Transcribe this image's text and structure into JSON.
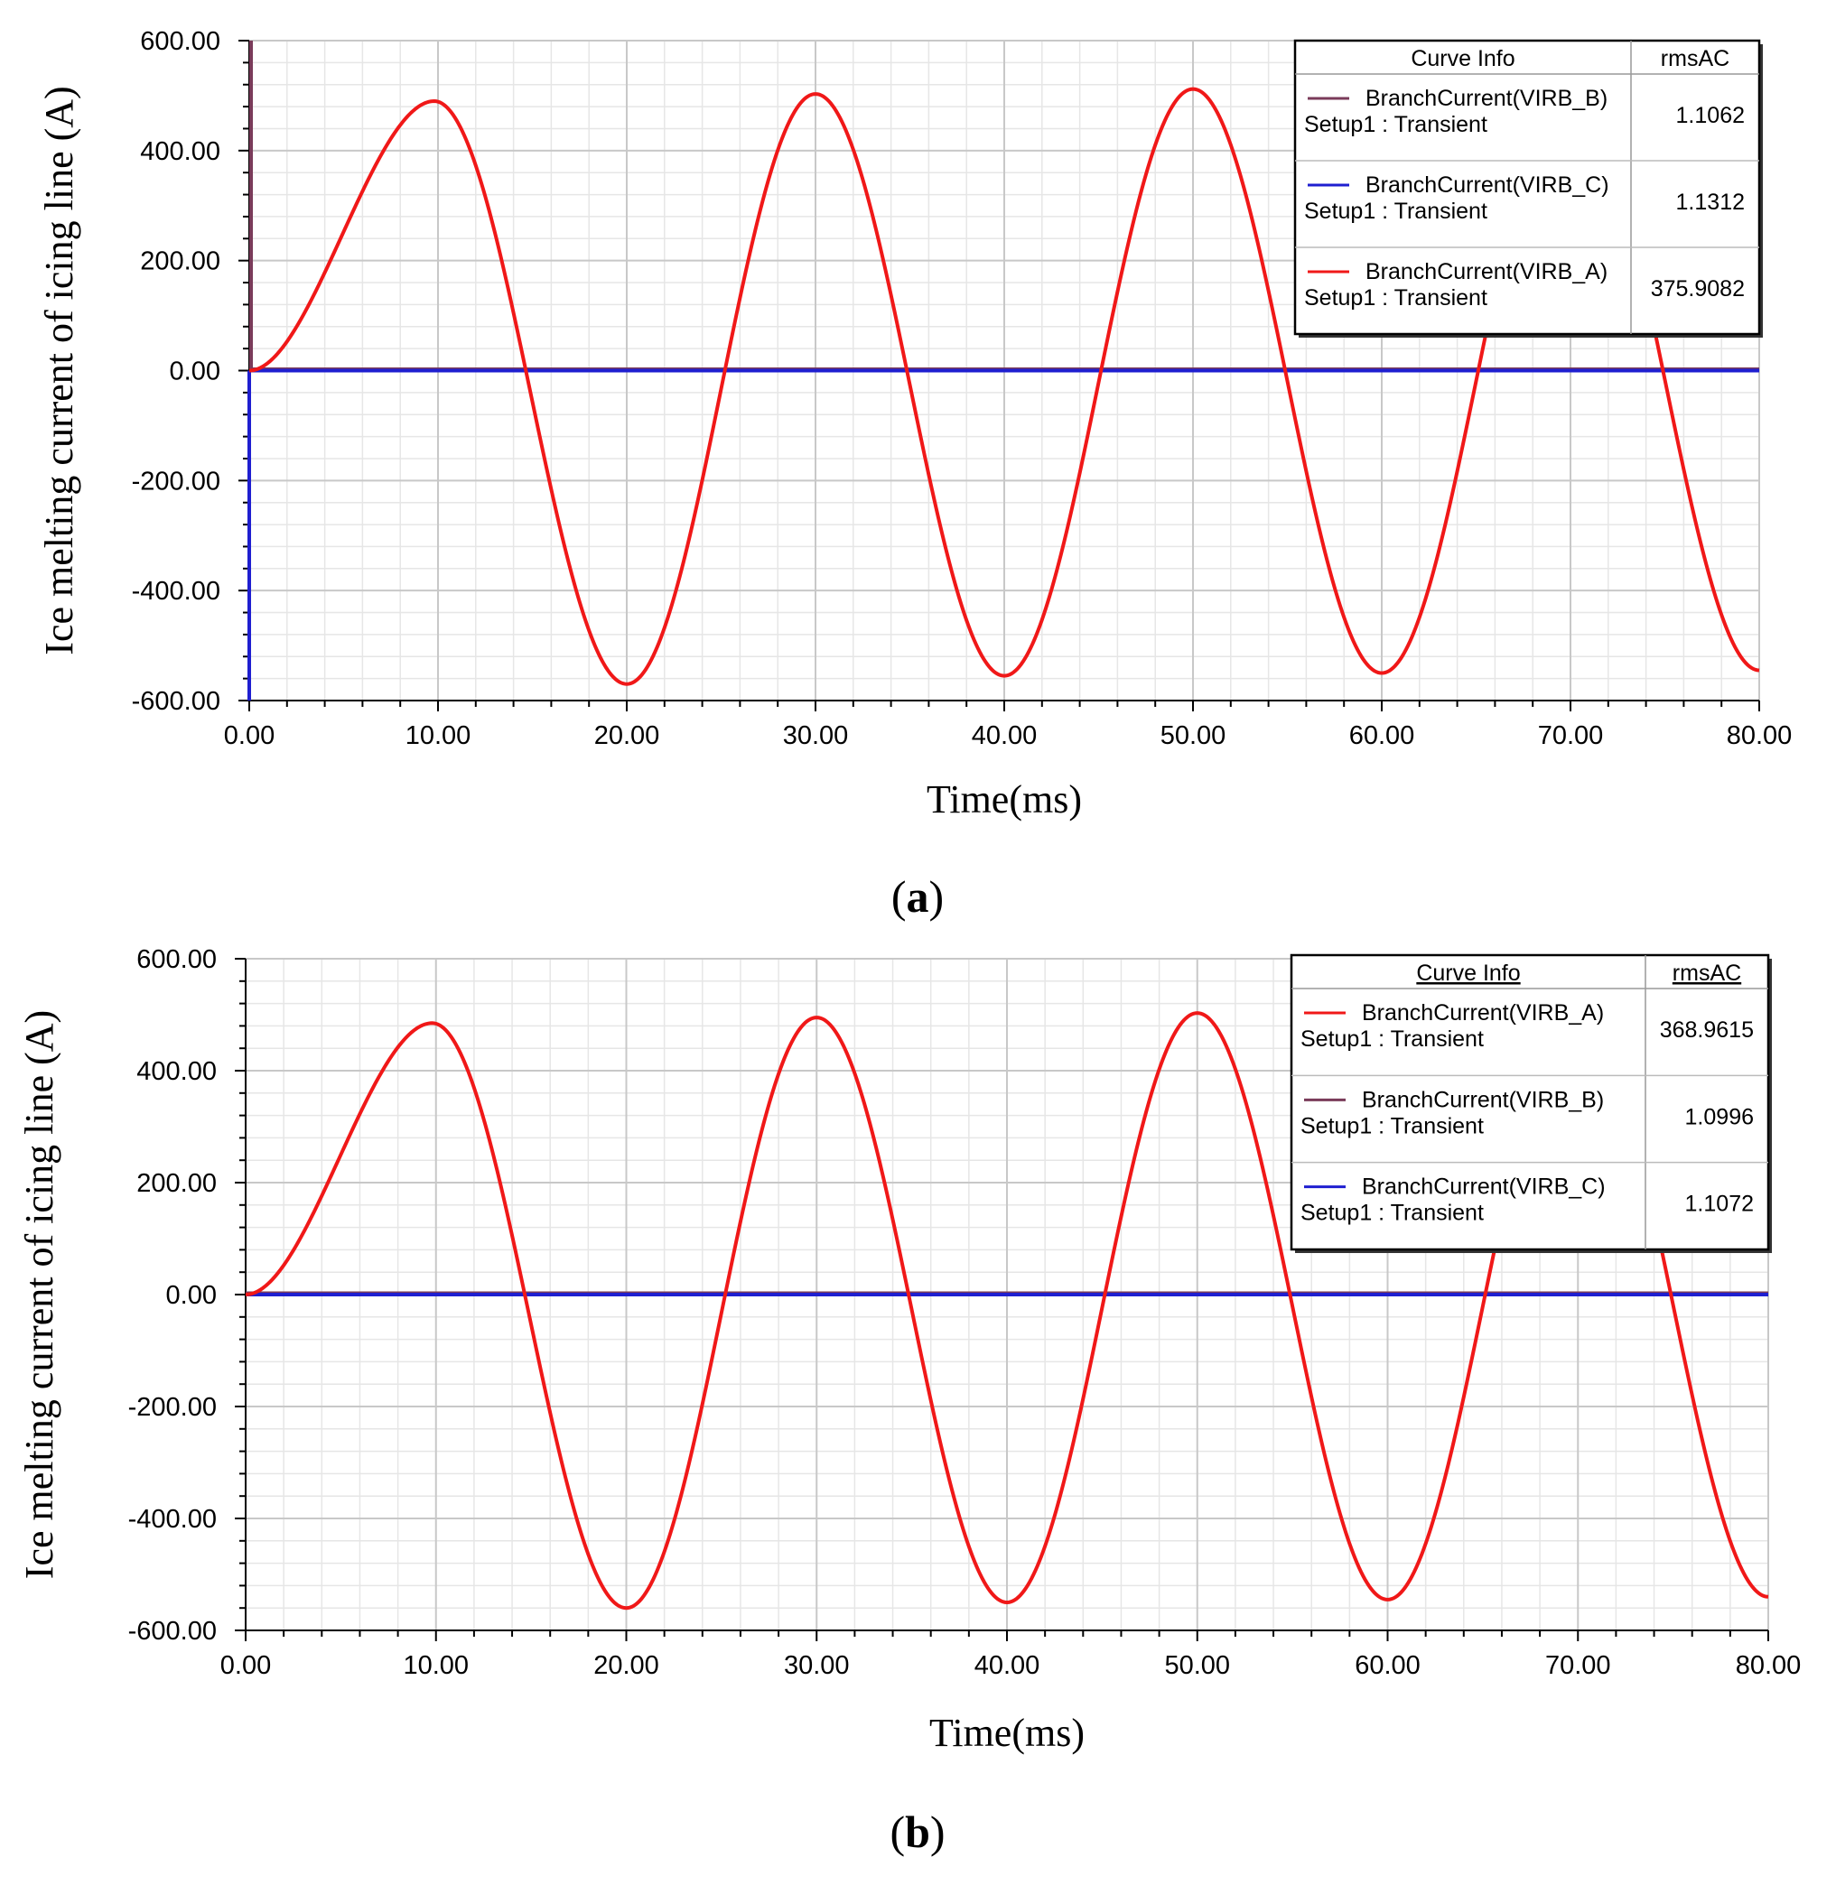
{
  "chart_data": [
    {
      "type": "line",
      "panel_label": "(a)",
      "panel_letter": "a",
      "xlabel": "Time(ms)",
      "ylabel": "Ice melting current of icing line (A)",
      "xlim": [
        0,
        80
      ],
      "ylim": [
        -600,
        600
      ],
      "x_ticks": [
        "0.00",
        "10.00",
        "20.00",
        "30.00",
        "40.00",
        "50.00",
        "60.00",
        "70.00",
        "80.00"
      ],
      "y_ticks": [
        "600.00",
        "400.00",
        "200.00",
        "0.00",
        "-200.00",
        "-400.00",
        "-600.00"
      ],
      "grid": true,
      "legend": {
        "placement": "top-right",
        "header_name": "Curve Info",
        "header_value": "rmsAC",
        "underlined_header": false,
        "entries": [
          {
            "name": "BranchCurrent(VIRB_B)",
            "setup": "Setup1 : Transient",
            "value": "1.1062",
            "color": "#7a3b5a"
          },
          {
            "name": "BranchCurrent(VIRB_C)",
            "setup": "Setup1 : Transient",
            "value": "1.1312",
            "color": "#1f1fd0"
          },
          {
            "name": "BranchCurrent(VIRB_A)",
            "setup": "Setup1 : Transient",
            "value": "375.9082",
            "color": "#f01818"
          }
        ]
      },
      "series": [
        {
          "name": "BranchCurrent(VIRB_A)",
          "color": "#f01818",
          "peaks": [
            0,
            490,
            -570,
            503,
            -555,
            512,
            -550
          ],
          "end_value": -545
        },
        {
          "name": "BranchCurrent(VIRB_B)",
          "color": "#7a3b5a",
          "flat_value": 0,
          "startup_spike": true
        },
        {
          "name": "BranchCurrent(VIRB_C)",
          "color": "#1f1fd0",
          "flat_value": 0,
          "startup_spike": true
        }
      ]
    },
    {
      "type": "line",
      "panel_label": "(b)",
      "panel_letter": "b",
      "xlabel": "Time(ms)",
      "ylabel": "Ice melting current of icing line (A)",
      "xlim": [
        0,
        80
      ],
      "ylim": [
        -600,
        600
      ],
      "x_ticks": [
        "0.00",
        "10.00",
        "20.00",
        "30.00",
        "40.00",
        "50.00",
        "60.00",
        "70.00",
        "80.00"
      ],
      "y_ticks": [
        "600.00",
        "400.00",
        "200.00",
        "0.00",
        "-200.00",
        "-400.00",
        "-600.00"
      ],
      "grid": true,
      "legend": {
        "placement": "top-right",
        "header_name": "Curve Info",
        "header_value": "rmsAC",
        "underlined_header": true,
        "entries": [
          {
            "name": "BranchCurrent(VIRB_A)",
            "setup": "Setup1 : Transient",
            "value": "368.9615",
            "color": "#f01818"
          },
          {
            "name": "BranchCurrent(VIRB_B)",
            "setup": "Setup1 : Transient",
            "value": "1.0996",
            "color": "#7a3b5a"
          },
          {
            "name": "BranchCurrent(VIRB_C)",
            "setup": "Setup1 : Transient",
            "value": "1.1072",
            "color": "#1f1fd0"
          }
        ]
      },
      "series": [
        {
          "name": "BranchCurrent(VIRB_A)",
          "color": "#f01818",
          "peaks": [
            0,
            485,
            -560,
            495,
            -550,
            503,
            -545
          ],
          "end_value": -540
        },
        {
          "name": "BranchCurrent(VIRB_B)",
          "color": "#7a3b5a",
          "flat_value": 0,
          "startup_spike": false
        },
        {
          "name": "BranchCurrent(VIRB_C)",
          "color": "#1f1fd0",
          "flat_value": 0,
          "startup_spike": false
        }
      ]
    }
  ]
}
